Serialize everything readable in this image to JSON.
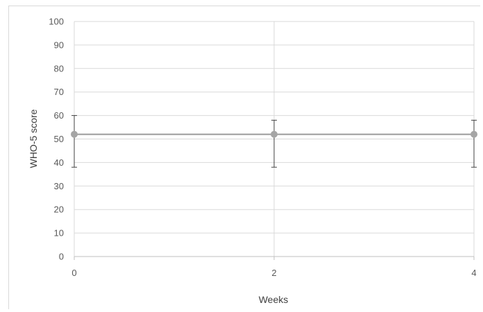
{
  "chart_data": {
    "type": "line",
    "title": "",
    "xlabel": "Weeks",
    "ylabel": "WHO-5 score",
    "x": [
      0,
      2,
      4
    ],
    "x_tick_labels": [
      "0",
      "2",
      "4"
    ],
    "xlim": [
      0,
      4
    ],
    "ylim": [
      0,
      100
    ],
    "y_ticks": [
      0,
      10,
      20,
      30,
      40,
      50,
      60,
      70,
      80,
      90,
      100
    ],
    "grid": true,
    "legend": "none",
    "series": [
      {
        "values": [
          52,
          52,
          52
        ],
        "error_low": [
          38,
          38,
          38
        ],
        "error_high": [
          60,
          58,
          58
        ],
        "color": "#a5a5a5"
      }
    ],
    "colors": {
      "gridline": "#d9d9d9",
      "axis_line": "#bfbfbf",
      "error_bar": "#404040",
      "marker": "#a5a5a5"
    }
  }
}
